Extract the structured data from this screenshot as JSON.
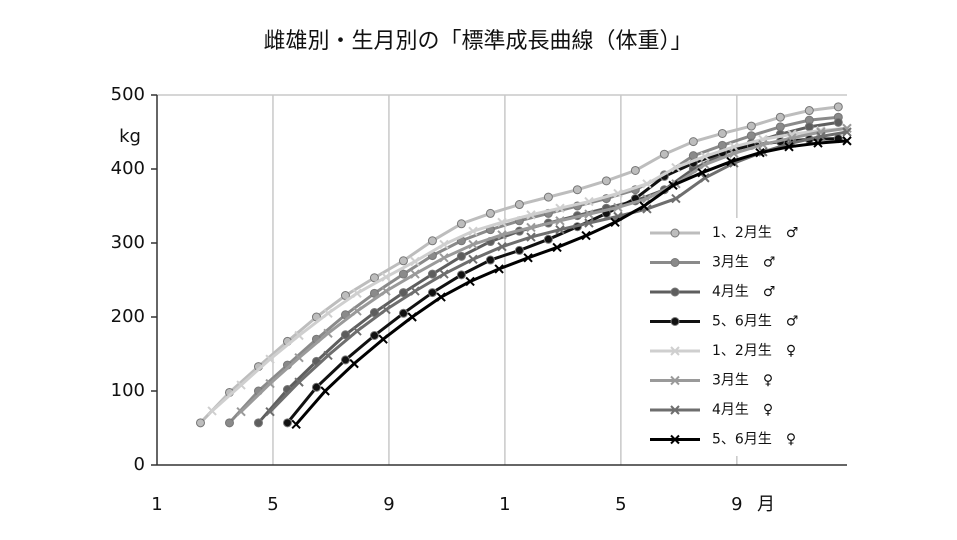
{
  "chart_data": {
    "type": "line",
    "title": "雌雄別・生月別の「標準成長曲線（体重）」",
    "y_label": "kg",
    "x_label": "月",
    "xlim": [
      1,
      24.8
    ],
    "ylim": [
      0,
      500
    ],
    "xticks": [
      1,
      5,
      9,
      {
        "value": 13,
        "label": "1"
      },
      {
        "value": 17,
        "label": "5"
      },
      {
        "value": 21,
        "label": "9"
      }
    ],
    "yticks": [
      0,
      100,
      200,
      300,
      400,
      500
    ],
    "grid": "x",
    "legend": "right",
    "series": [
      {
        "name": "1、2月生　♂",
        "color": "#bdbdbd",
        "marker": "circle",
        "x": [
          2.5,
          3.5,
          4.5,
          5.5,
          6.5,
          7.5,
          8.5,
          9.5,
          10.5,
          11.5,
          12.5,
          13.5,
          14.5,
          15.5,
          16.5,
          17.5,
          18.5,
          19.5,
          20.5,
          21.5,
          22.5,
          23.5,
          24.5
        ],
        "values": [
          57,
          98,
          133,
          167,
          200,
          229,
          253,
          276,
          303,
          326,
          340,
          352,
          362,
          372,
          384,
          398,
          420,
          437,
          448,
          458,
          470,
          479,
          484
        ]
      },
      {
        "name": "3月生　♂",
        "color": "#8a8a8a",
        "marker": "circle",
        "x": [
          3.5,
          4.5,
          5.5,
          6.5,
          7.5,
          8.5,
          9.5,
          10.5,
          11.5,
          12.5,
          13.5,
          14.5,
          15.5,
          16.5,
          17.5,
          18.5,
          19.5,
          20.5,
          21.5,
          22.5,
          23.5,
          24.5
        ],
        "values": [
          57,
          100,
          135,
          170,
          203,
          232,
          258,
          283,
          303,
          318,
          330,
          340,
          350,
          360,
          372,
          392,
          418,
          432,
          445,
          457,
          466,
          470
        ]
      },
      {
        "name": "4月生　♂",
        "color": "#5e5e5e",
        "marker": "circle",
        "x": [
          4.5,
          5.5,
          6.5,
          7.5,
          8.5,
          9.5,
          10.5,
          11.5,
          12.5,
          13.5,
          14.5,
          15.5,
          16.5,
          17.5,
          18.5,
          19.5,
          20.5,
          21.5,
          22.5,
          23.5,
          24.5
        ],
        "values": [
          57,
          102,
          140,
          176,
          206,
          233,
          258,
          282,
          302,
          316,
          327,
          337,
          347,
          357,
          372,
          400,
          420,
          435,
          447,
          457,
          463
        ]
      },
      {
        "name": "5、6月生　♂",
        "color": "#111111",
        "marker": "circle",
        "x": [
          5.5,
          6.5,
          7.5,
          8.5,
          9.5,
          10.5,
          11.5,
          12.5,
          13.5,
          14.5,
          15.5,
          16.5,
          17.5,
          18.5,
          19.5,
          20.5,
          21.5,
          22.5,
          23.5,
          24.5
        ],
        "values": [
          57,
          105,
          142,
          175,
          205,
          233,
          257,
          277,
          290,
          305,
          322,
          340,
          360,
          390,
          408,
          422,
          432,
          437,
          440,
          441
        ]
      },
      {
        "name": "1、2月生　♀",
        "color": "#cfcfcf",
        "marker": "cross",
        "x": [
          2.9,
          3.9,
          4.9,
          5.9,
          6.9,
          7.9,
          8.9,
          9.9,
          10.9,
          11.9,
          12.9,
          13.9,
          14.9,
          15.9,
          16.9,
          17.9,
          18.9,
          19.9,
          20.9,
          21.9,
          22.9,
          23.9,
          24.8
        ],
        "values": [
          73,
          108,
          143,
          175,
          205,
          232,
          254,
          275,
          298,
          316,
          328,
          338,
          347,
          356,
          367,
          380,
          402,
          417,
          430,
          440,
          447,
          452,
          455
        ]
      },
      {
        "name": "3月生　♀",
        "color": "#9a9a9a",
        "marker": "cross",
        "x": [
          3.9,
          4.9,
          5.9,
          6.9,
          7.9,
          8.9,
          9.9,
          10.9,
          11.9,
          12.9,
          13.9,
          14.9,
          15.9,
          16.9,
          17.9,
          18.9,
          19.9,
          20.9,
          21.9,
          22.9,
          23.9,
          24.8
        ],
        "values": [
          72,
          110,
          145,
          178,
          208,
          235,
          258,
          280,
          298,
          311,
          321,
          330,
          339,
          348,
          360,
          380,
          406,
          421,
          433,
          442,
          450,
          455
        ]
      },
      {
        "name": "4月生　♀",
        "color": "#6e6e6e",
        "marker": "cross",
        "x": [
          4.9,
          5.9,
          6.9,
          7.9,
          8.9,
          9.9,
          10.9,
          11.9,
          12.9,
          13.9,
          14.9,
          15.9,
          16.9,
          17.9,
          18.9,
          19.9,
          20.9,
          21.9,
          22.9,
          23.9,
          24.8
        ],
        "values": [
          72,
          112,
          148,
          181,
          210,
          235,
          258,
          278,
          295,
          308,
          318,
          327,
          336,
          346,
          360,
          388,
          408,
          423,
          435,
          444,
          450
        ]
      },
      {
        "name": "5、6月生　♀",
        "color": "#000000",
        "marker": "cross",
        "x": [
          5.8,
          6.8,
          7.8,
          8.8,
          9.8,
          10.8,
          11.8,
          12.8,
          13.8,
          14.8,
          15.8,
          16.8,
          17.8,
          18.8,
          19.8,
          20.8,
          21.8,
          22.8,
          23.8,
          24.8
        ],
        "values": [
          55,
          100,
          137,
          170,
          200,
          227,
          248,
          265,
          280,
          294,
          310,
          328,
          350,
          378,
          395,
          410,
          422,
          430,
          435,
          438
        ]
      }
    ]
  }
}
